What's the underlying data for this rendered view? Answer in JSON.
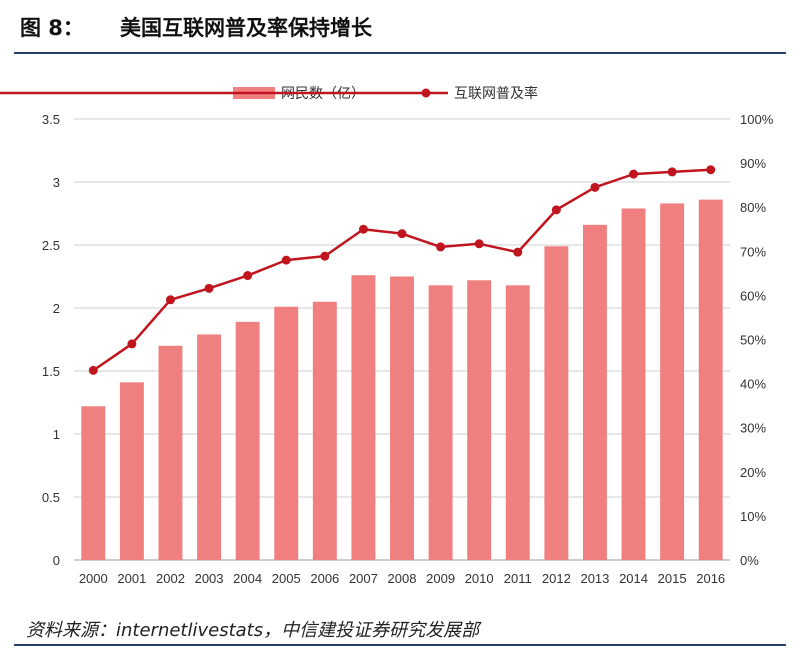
{
  "figure": {
    "label": "图 8：",
    "title": "美国互联网普及率保持增长"
  },
  "source": "资料来源：internetlivestats，中信建投证券研究发展部",
  "chart_data": {
    "type": "bar+line",
    "categories": [
      "2000",
      "2001",
      "2002",
      "2003",
      "2004",
      "2005",
      "2006",
      "2007",
      "2008",
      "2009",
      "2010",
      "2011",
      "2012",
      "2013",
      "2014",
      "2015",
      "2016"
    ],
    "series": [
      {
        "name": "网民数（亿）",
        "type": "bar",
        "axis": "left",
        "color": "#f07f80",
        "values": [
          1.22,
          1.41,
          1.7,
          1.79,
          1.89,
          2.01,
          2.05,
          2.26,
          2.25,
          2.18,
          2.22,
          2.18,
          2.49,
          2.66,
          2.79,
          2.83,
          2.86
        ]
      },
      {
        "name": "互联网普及率",
        "type": "line",
        "axis": "right",
        "color": "#c0151e",
        "values": [
          0.43,
          0.49,
          0.59,
          0.616,
          0.645,
          0.68,
          0.689,
          0.75,
          0.74,
          0.71,
          0.717,
          0.698,
          0.794,
          0.845,
          0.875,
          0.88,
          0.885
        ]
      }
    ],
    "y_left": {
      "min": 0,
      "max": 3.5,
      "ticks": [
        "0",
        "0.5",
        "1",
        "1.5",
        "2",
        "2.5",
        "3",
        "3.5"
      ]
    },
    "y_right": {
      "min": 0,
      "max": 1.0,
      "ticks": [
        "0%",
        "10%",
        "20%",
        "30%",
        "40%",
        "50%",
        "60%",
        "70%",
        "80%",
        "90%",
        "100%"
      ]
    },
    "grid": true,
    "legend_position": "top-center"
  }
}
